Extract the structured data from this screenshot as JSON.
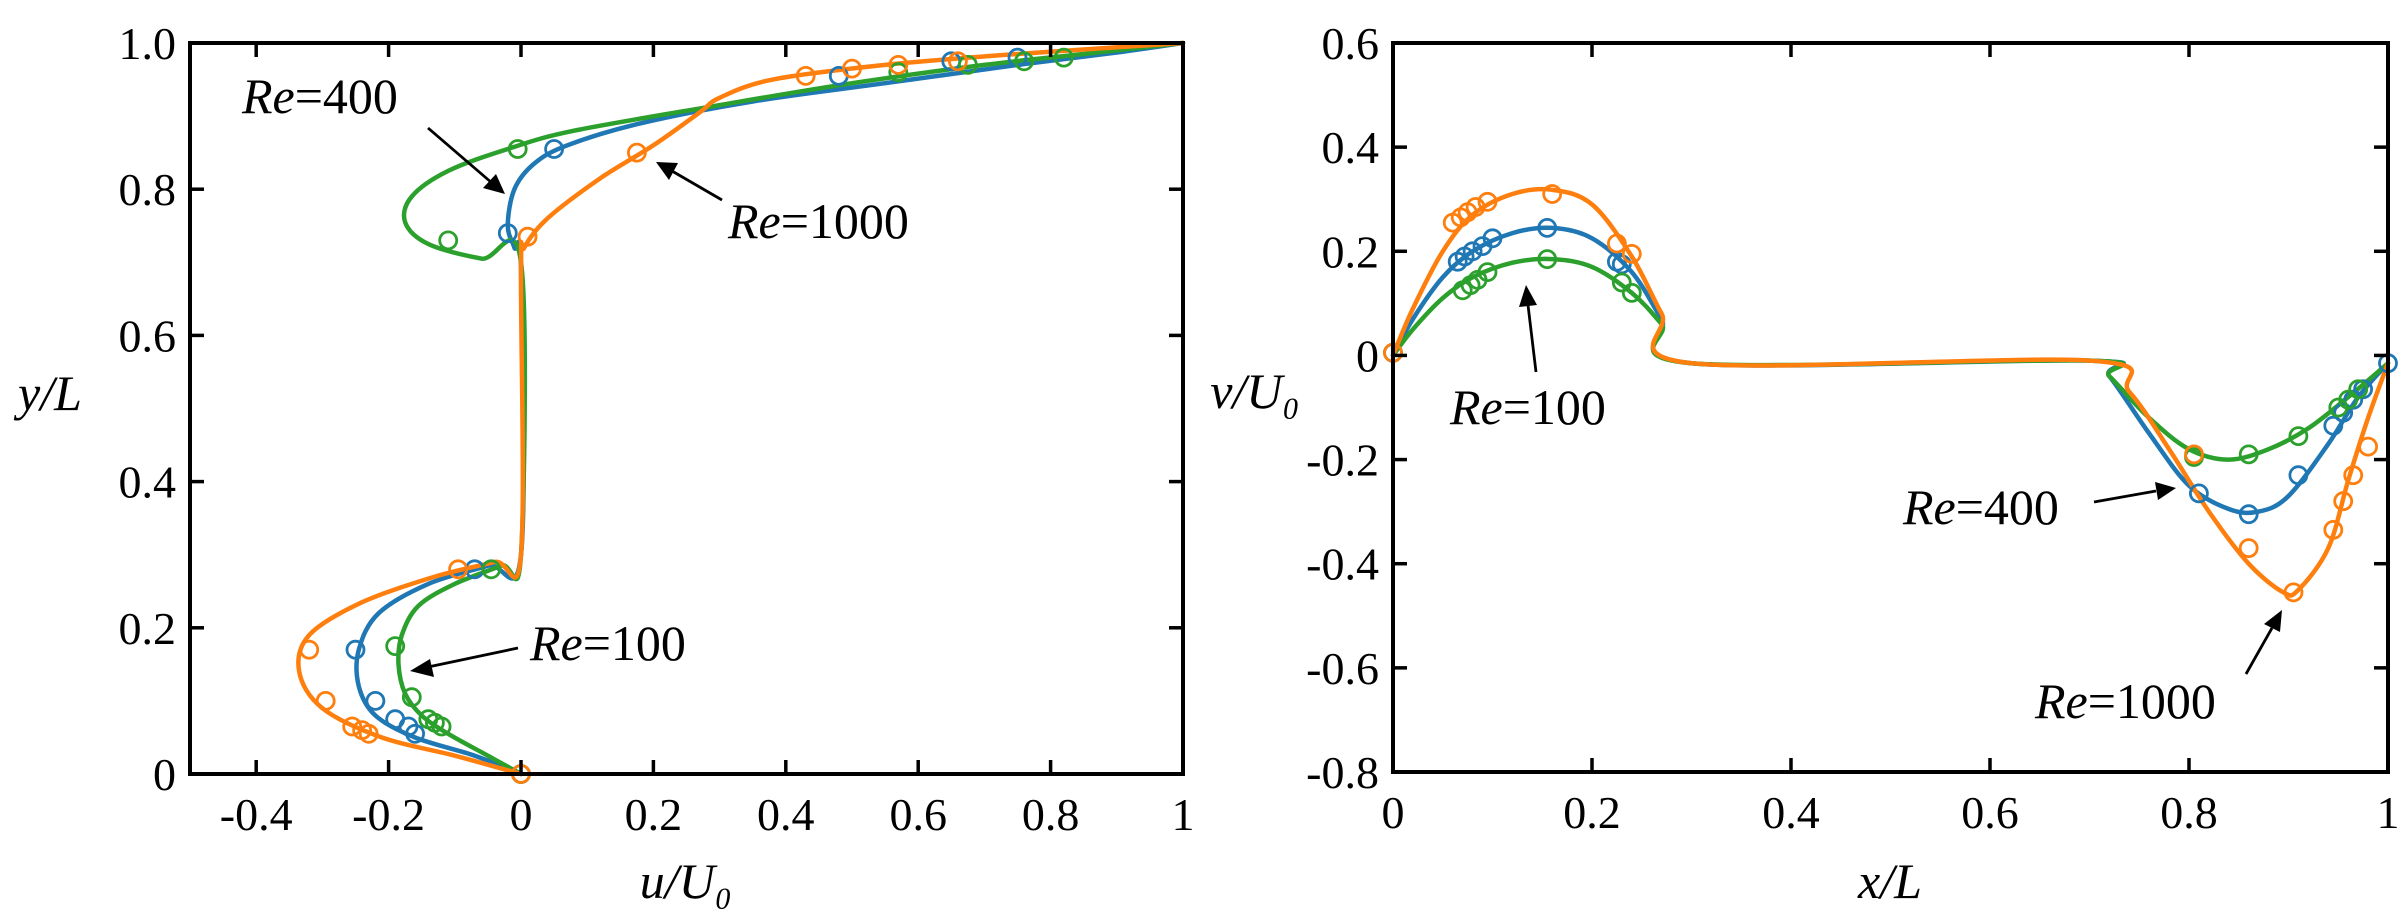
{
  "colors": {
    "Re100": "#2ca02c",
    "Re400": "#1f77b4",
    "Re1000": "#ff7f0e",
    "axis": "#000000"
  },
  "chart_data": [
    {
      "type": "line",
      "title": "",
      "xlabel": "u/U₀",
      "ylabel": "y/L",
      "xlim": [
        -0.5,
        1.0
      ],
      "ylim": [
        0.0,
        1.0
      ],
      "xticks": [
        -0.4,
        -0.2,
        0,
        0.2,
        0.4,
        0.6,
        0.8,
        1
      ],
      "xtick_labels": [
        "-0.4",
        "-0.2",
        "0",
        "0.2",
        "0.4",
        "0.6",
        "0.8",
        "1"
      ],
      "yticks": [
        0,
        0.2,
        0.4,
        0.6,
        0.8,
        1.0
      ],
      "ytick_labels": [
        "0",
        "0.2",
        "0.4",
        "0.6",
        "0.8",
        "1.0"
      ],
      "series": [
        {
          "name": "Re=100",
          "color": "#2ca02c",
          "curve": [
            [
              0.0,
              0.0
            ],
            [
              -0.05,
              0.025
            ],
            [
              -0.11,
              0.055
            ],
            [
              -0.15,
              0.08
            ],
            [
              -0.175,
              0.11
            ],
            [
              -0.185,
              0.15
            ],
            [
              -0.18,
              0.19
            ],
            [
              -0.155,
              0.23
            ],
            [
              -0.1,
              0.26
            ],
            [
              -0.03,
              0.285
            ],
            [
              0.0,
              0.3
            ],
            [
              0.0,
              0.7
            ],
            [
              -0.06,
              0.705
            ],
            [
              -0.14,
              0.725
            ],
            [
              -0.175,
              0.755
            ],
            [
              -0.165,
              0.79
            ],
            [
              -0.11,
              0.825
            ],
            [
              -0.02,
              0.855
            ],
            [
              0.08,
              0.88
            ],
            [
              0.3,
              0.915
            ],
            [
              0.5,
              0.945
            ],
            [
              0.7,
              0.97
            ],
            [
              0.85,
              0.985
            ],
            [
              1.0,
              1.0
            ]
          ],
          "markers": [
            [
              0.0,
              0.0
            ],
            [
              -0.12,
              0.065
            ],
            [
              -0.13,
              0.07
            ],
            [
              -0.14,
              0.075
            ],
            [
              -0.165,
              0.105
            ],
            [
              -0.19,
              0.175
            ],
            [
              -0.045,
              0.28
            ],
            [
              -0.11,
              0.73
            ],
            [
              -0.005,
              0.855
            ],
            [
              0.57,
              0.96
            ],
            [
              0.675,
              0.97
            ],
            [
              0.76,
              0.975
            ],
            [
              0.82,
              0.98
            ]
          ]
        },
        {
          "name": "Re=400",
          "color": "#1f77b4",
          "curve": [
            [
              0.0,
              0.0
            ],
            [
              -0.07,
              0.025
            ],
            [
              -0.16,
              0.05
            ],
            [
              -0.22,
              0.08
            ],
            [
              -0.245,
              0.12
            ],
            [
              -0.245,
              0.17
            ],
            [
              -0.215,
              0.22
            ],
            [
              -0.14,
              0.26
            ],
            [
              -0.05,
              0.285
            ],
            [
              0.0,
              0.3
            ],
            [
              0.0,
              0.69
            ],
            [
              -0.01,
              0.72
            ],
            [
              -0.02,
              0.75
            ],
            [
              -0.01,
              0.8
            ],
            [
              0.02,
              0.835
            ],
            [
              0.07,
              0.86
            ],
            [
              0.18,
              0.89
            ],
            [
              0.35,
              0.92
            ],
            [
              0.55,
              0.945
            ],
            [
              0.75,
              0.97
            ],
            [
              0.9,
              0.987
            ],
            [
              1.0,
              1.0
            ]
          ],
          "markers": [
            [
              0.0,
              0.0
            ],
            [
              -0.16,
              0.055
            ],
            [
              -0.17,
              0.065
            ],
            [
              -0.19,
              0.075
            ],
            [
              -0.22,
              0.1
            ],
            [
              -0.25,
              0.17
            ],
            [
              -0.07,
              0.28
            ],
            [
              -0.02,
              0.74
            ],
            [
              0.05,
              0.855
            ],
            [
              0.48,
              0.955
            ],
            [
              0.65,
              0.975
            ],
            [
              0.75,
              0.98
            ]
          ]
        },
        {
          "name": "Re=1000",
          "color": "#ff7f0e",
          "curve": [
            [
              0.0,
              0.0
            ],
            [
              -0.1,
              0.025
            ],
            [
              -0.21,
              0.05
            ],
            [
              -0.3,
              0.09
            ],
            [
              -0.335,
              0.14
            ],
            [
              -0.32,
              0.19
            ],
            [
              -0.24,
              0.235
            ],
            [
              -0.13,
              0.27
            ],
            [
              -0.04,
              0.29
            ],
            [
              0.0,
              0.3
            ],
            [
              0.0,
              0.69
            ],
            [
              0.005,
              0.72
            ],
            [
              0.04,
              0.76
            ],
            [
              0.12,
              0.815
            ],
            [
              0.2,
              0.86
            ],
            [
              0.27,
              0.905
            ],
            [
              0.3,
              0.925
            ],
            [
              0.38,
              0.95
            ],
            [
              0.55,
              0.97
            ],
            [
              0.75,
              0.985
            ],
            [
              1.0,
              1.0
            ]
          ],
          "markers": [
            [
              0.0,
              0.0
            ],
            [
              -0.23,
              0.055
            ],
            [
              -0.24,
              0.06
            ],
            [
              -0.255,
              0.065
            ],
            [
              -0.295,
              0.1
            ],
            [
              -0.32,
              0.17
            ],
            [
              -0.095,
              0.28
            ],
            [
              0.01,
              0.735
            ],
            [
              0.175,
              0.85
            ],
            [
              0.43,
              0.955
            ],
            [
              0.5,
              0.965
            ],
            [
              0.57,
              0.97
            ],
            [
              0.66,
              0.975
            ]
          ]
        }
      ],
      "annotations": [
        {
          "it": "Re",
          "rest": "=400"
        },
        {
          "it": "Re",
          "rest": "=1000"
        },
        {
          "it": "Re",
          "rest": "=100"
        }
      ]
    },
    {
      "type": "line",
      "title": "",
      "xlabel": "x/L",
      "ylabel": "v/U₀",
      "xlim": [
        0.0,
        1.0
      ],
      "ylim": [
        -0.8,
        0.6
      ],
      "xticks": [
        0,
        0.2,
        0.4,
        0.6,
        0.8,
        1
      ],
      "xtick_labels": [
        "0",
        "0.2",
        "0.4",
        "0.6",
        "0.8",
        "1"
      ],
      "yticks": [
        -0.8,
        -0.6,
        -0.4,
        -0.2,
        0,
        0.2,
        0.4,
        0.6
      ],
      "ytick_labels": [
        "-0.8",
        "-0.6",
        "-0.4",
        "-0.2",
        "0",
        "0.2",
        "0.4",
        "0.6"
      ],
      "series": [
        {
          "name": "Re=100",
          "color": "#2ca02c",
          "curve": [
            [
              0.0,
              0.0
            ],
            [
              0.02,
              0.05
            ],
            [
              0.05,
              0.11
            ],
            [
              0.08,
              0.15
            ],
            [
              0.12,
              0.178
            ],
            [
              0.16,
              0.185
            ],
            [
              0.2,
              0.17
            ],
            [
              0.24,
              0.12
            ],
            [
              0.27,
              0.06
            ],
            [
              0.3,
              -0.015
            ],
            [
              0.7,
              -0.01
            ],
            [
              0.72,
              -0.04
            ],
            [
              0.76,
              -0.12
            ],
            [
              0.8,
              -0.18
            ],
            [
              0.84,
              -0.2
            ],
            [
              0.88,
              -0.18
            ],
            [
              0.92,
              -0.14
            ],
            [
              0.96,
              -0.08
            ],
            [
              1.0,
              -0.015
            ]
          ],
          "markers": [
            [
              0.0,
              0.005
            ],
            [
              0.07,
              0.125
            ],
            [
              0.078,
              0.135
            ],
            [
              0.085,
              0.145
            ],
            [
              0.095,
              0.16
            ],
            [
              0.155,
              0.185
            ],
            [
              0.23,
              0.14
            ],
            [
              0.24,
              0.12
            ],
            [
              0.805,
              -0.195
            ],
            [
              0.86,
              -0.19
            ],
            [
              0.91,
              -0.155
            ],
            [
              0.95,
              -0.1
            ],
            [
              0.96,
              -0.085
            ],
            [
              0.97,
              -0.065
            ]
          ]
        },
        {
          "name": "Re=400",
          "color": "#1f77b4",
          "curve": [
            [
              0.0,
              0.0
            ],
            [
              0.02,
              0.07
            ],
            [
              0.05,
              0.15
            ],
            [
              0.08,
              0.2
            ],
            [
              0.12,
              0.235
            ],
            [
              0.16,
              0.245
            ],
            [
              0.2,
              0.225
            ],
            [
              0.24,
              0.16
            ],
            [
              0.27,
              0.07
            ],
            [
              0.3,
              -0.015
            ],
            [
              0.7,
              -0.01
            ],
            [
              0.72,
              -0.04
            ],
            [
              0.76,
              -0.15
            ],
            [
              0.8,
              -0.25
            ],
            [
              0.84,
              -0.295
            ],
            [
              0.87,
              -0.3
            ],
            [
              0.9,
              -0.27
            ],
            [
              0.94,
              -0.17
            ],
            [
              0.97,
              -0.08
            ],
            [
              1.0,
              -0.015
            ]
          ],
          "markers": [
            [
              0.0,
              0.005
            ],
            [
              0.065,
              0.18
            ],
            [
              0.072,
              0.19
            ],
            [
              0.08,
              0.2
            ],
            [
              0.09,
              0.21
            ],
            [
              0.1,
              0.225
            ],
            [
              0.155,
              0.245
            ],
            [
              0.225,
              0.18
            ],
            [
              0.23,
              0.175
            ],
            [
              0.81,
              -0.265
            ],
            [
              0.86,
              -0.305
            ],
            [
              0.91,
              -0.23
            ],
            [
              0.945,
              -0.135
            ],
            [
              0.955,
              -0.11
            ],
            [
              0.965,
              -0.085
            ],
            [
              0.975,
              -0.065
            ],
            [
              1.0,
              -0.015
            ]
          ]
        },
        {
          "name": "Re=1000",
          "color": "#ff7f0e",
          "curve": [
            [
              0.0,
              0.0
            ],
            [
              0.02,
              0.09
            ],
            [
              0.05,
              0.2
            ],
            [
              0.08,
              0.27
            ],
            [
              0.12,
              0.31
            ],
            [
              0.16,
              0.318
            ],
            [
              0.2,
              0.29
            ],
            [
              0.24,
              0.19
            ],
            [
              0.27,
              0.08
            ],
            [
              0.3,
              -0.015
            ],
            [
              0.7,
              -0.01
            ],
            [
              0.74,
              -0.07
            ],
            [
              0.78,
              -0.18
            ],
            [
              0.82,
              -0.3
            ],
            [
              0.86,
              -0.4
            ],
            [
              0.895,
              -0.455
            ],
            [
              0.91,
              -0.45
            ],
            [
              0.94,
              -0.37
            ],
            [
              0.96,
              -0.24
            ],
            [
              0.98,
              -0.12
            ],
            [
              1.0,
              -0.015
            ]
          ],
          "markers": [
            [
              0.0,
              0.005
            ],
            [
              0.06,
              0.255
            ],
            [
              0.068,
              0.265
            ],
            [
              0.075,
              0.275
            ],
            [
              0.083,
              0.285
            ],
            [
              0.095,
              0.295
            ],
            [
              0.16,
              0.31
            ],
            [
              0.225,
              0.215
            ],
            [
              0.24,
              0.195
            ],
            [
              0.805,
              -0.19
            ],
            [
              0.86,
              -0.37
            ],
            [
              0.905,
              -0.455
            ],
            [
              0.945,
              -0.335
            ],
            [
              0.955,
              -0.28
            ],
            [
              0.965,
              -0.23
            ],
            [
              0.98,
              -0.175
            ]
          ]
        }
      ],
      "annotations": [
        {
          "it": "Re",
          "rest": "=100"
        },
        {
          "it": "Re",
          "rest": "=400"
        },
        {
          "it": "Re",
          "rest": "=1000"
        }
      ]
    }
  ]
}
